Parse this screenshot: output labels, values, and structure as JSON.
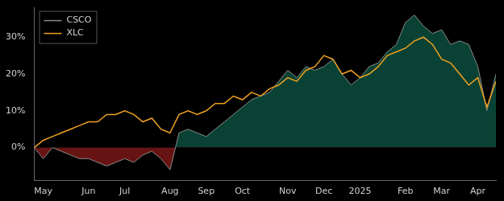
{
  "chart_data": {
    "type": "line",
    "categories": [
      null,
      "May",
      null,
      null,
      null,
      null,
      "Jun",
      null,
      null,
      null,
      "Jul",
      null,
      null,
      null,
      null,
      "Aug",
      null,
      null,
      null,
      "Sep",
      null,
      null,
      null,
      "Oct",
      null,
      null,
      null,
      null,
      "Nov",
      null,
      null,
      null,
      "Dec",
      null,
      null,
      null,
      "2025",
      null,
      null,
      null,
      null,
      "Feb",
      null,
      null,
      null,
      "Mar",
      null,
      null,
      null,
      "Apr",
      null,
      null
    ],
    "series": [
      {
        "name": "CSCO",
        "color": "#8a8a8a",
        "type": "area",
        "values": [
          0,
          -3,
          0,
          -1,
          -2,
          -3,
          -3,
          -4,
          -5,
          -4,
          -3,
          -4,
          -2,
          -1,
          -3,
          -6,
          4,
          5,
          4,
          3,
          5,
          7,
          9,
          11,
          13,
          14,
          15,
          18,
          21,
          19,
          22,
          21,
          22,
          24,
          20,
          17,
          19,
          22,
          23,
          26,
          28,
          34,
          36,
          33,
          31,
          32,
          28,
          29,
          28,
          22,
          10,
          20
        ]
      },
      {
        "name": "XLC",
        "color": "#f0a020",
        "type": "line",
        "values": [
          0,
          2,
          3,
          4,
          5,
          6,
          7,
          7,
          9,
          9,
          10,
          9,
          7,
          8,
          5,
          4,
          9,
          10,
          9,
          10,
          12,
          12,
          14,
          13,
          15,
          14,
          16,
          17,
          19,
          18,
          21,
          22,
          25,
          24,
          20,
          21,
          19,
          20,
          22,
          25,
          26,
          27,
          29,
          30,
          28,
          24,
          23,
          20,
          17,
          19,
          11,
          18
        ]
      }
    ],
    "ylim": [
      -9,
      38
    ],
    "yticks": [
      {
        "value": 0,
        "label": "0%"
      },
      {
        "value": 10,
        "label": "10%"
      },
      {
        "value": 20,
        "label": "20%"
      },
      {
        "value": 30,
        "label": "30%"
      }
    ],
    "grid": false,
    "legend": "upper left"
  }
}
